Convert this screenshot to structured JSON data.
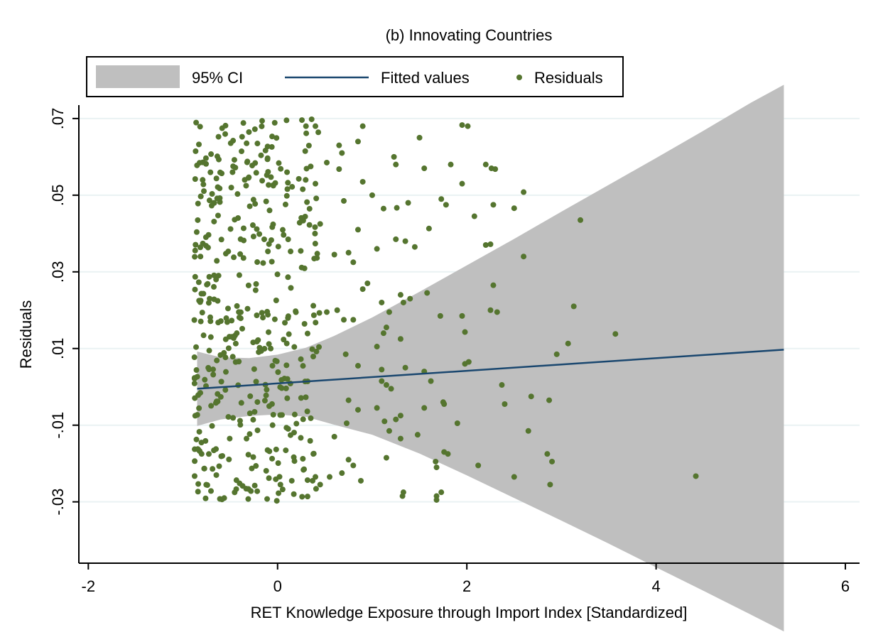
{
  "chart_data": {
    "type": "scatter",
    "title": "(b) Innovating Countries",
    "xlabel": "RET Knowledge Exposure through Import Index [Standardized]",
    "ylabel": "Residuals",
    "xlim": [
      -2.1,
      6.15
    ],
    "ylim": [
      -0.046,
      0.0735
    ],
    "xticks": [
      -2,
      0,
      2,
      4,
      6
    ],
    "xtick_labels": [
      "-2",
      "0",
      "2",
      "4",
      "6"
    ],
    "yticks": [
      -0.03,
      -0.01,
      0.01,
      0.03,
      0.05,
      0.07
    ],
    "ytick_labels": [
      "-.03",
      "-.01",
      ".01",
      ".03",
      ".05",
      ".07"
    ],
    "grid": true,
    "legend_position": "top",
    "legend": [
      "95% CI",
      "Fitted values",
      "Residuals"
    ],
    "colors": {
      "ci": "#bfbfbf",
      "fit": "#1a476f",
      "points": "#55752f",
      "grid": "#eaf2f3"
    },
    "fitted_line": {
      "x": [
        -0.85,
        5.35
      ],
      "y": [
        -0.0005,
        0.0097
      ]
    },
    "ci_band": {
      "x": [
        -0.85,
        -0.6,
        -0.3,
        0,
        0.3,
        0.6,
        1,
        1.5,
        2,
        2.5,
        3,
        3.5,
        4,
        4.5,
        5,
        5.35
      ],
      "upper": [
        0.0092,
        0.0077,
        0.0075,
        0.0084,
        0.0102,
        0.0133,
        0.0181,
        0.0248,
        0.0317,
        0.0386,
        0.0457,
        0.0527,
        0.0597,
        0.0668,
        0.0741,
        0.0788
      ],
      "lower": [
        -0.0102,
        -0.0085,
        -0.0076,
        -0.0072,
        -0.0078,
        -0.0099,
        -0.0125,
        -0.0174,
        -0.0231,
        -0.029,
        -0.0349,
        -0.0409,
        -0.0471,
        -0.0532,
        -0.0594,
        -0.0638
      ]
    },
    "series": [
      {
        "name": "Residuals",
        "points": [
          [
            0.3,
            0.068
          ],
          [
            0.36,
            0.0698
          ],
          [
            0.4,
            0.068
          ],
          [
            0.65,
            0.063
          ],
          [
            0.68,
            0.061
          ],
          [
            0.85,
            0.064
          ],
          [
            0.9,
            0.068
          ],
          [
            1.23,
            0.06
          ],
          [
            1.25,
            0.058
          ],
          [
            1.5,
            0.065
          ],
          [
            1.55,
            0.057
          ],
          [
            1.95,
            0.0683
          ],
          [
            2.01,
            0.068
          ],
          [
            2.2,
            0.058
          ],
          [
            2.26,
            0.057
          ],
          [
            2.3,
            0.0568
          ],
          [
            1.83,
            0.058
          ],
          [
            0.65,
            0.0568
          ],
          [
            0.52,
            0.0585
          ],
          [
            0.1,
            0.056
          ],
          [
            0.35,
            0.0575
          ],
          [
            0.4,
            0.053
          ],
          [
            0.9,
            0.0535
          ],
          [
            1,
            0.05
          ],
          [
            1.95,
            0.053
          ],
          [
            2.6,
            0.0508
          ],
          [
            2.5,
            0.0466
          ],
          [
            2.28,
            0.0475
          ],
          [
            1.73,
            0.049
          ],
          [
            1.78,
            0.0475
          ],
          [
            1.38,
            0.048
          ],
          [
            1.26,
            0.0467
          ],
          [
            1.12,
            0.0465
          ],
          [
            0.45,
            0.0425
          ],
          [
            0.7,
            0.0485
          ],
          [
            0.85,
            0.041
          ],
          [
            1.6,
            0.0413
          ],
          [
            2.08,
            0.0445
          ],
          [
            2.2,
            0.037
          ],
          [
            2.25,
            0.0372
          ],
          [
            2.6,
            0.034
          ],
          [
            3.2,
            0.0435
          ],
          [
            1.05,
            0.036
          ],
          [
            1.25,
            0.0385
          ],
          [
            1.35,
            0.038
          ],
          [
            1.45,
            0.0365
          ],
          [
            0.6,
            0.0345
          ],
          [
            0.75,
            0.035
          ],
          [
            0.8,
            0.0325
          ],
          [
            0.95,
            0.027
          ],
          [
            0.9,
            0.0255
          ],
          [
            1.1,
            0.022
          ],
          [
            1.18,
            0.0195
          ],
          [
            1.3,
            0.024
          ],
          [
            1.33,
            0.022
          ],
          [
            1.4,
            0.023
          ],
          [
            1.58,
            0.0245
          ],
          [
            1.72,
            0.0185
          ],
          [
            1.95,
            0.0185
          ],
          [
            2.25,
            0.02
          ],
          [
            2.32,
            0.0195
          ],
          [
            2.28,
            0.0265
          ],
          [
            0.52,
            0.0195
          ],
          [
            0.63,
            0.02
          ],
          [
            0.7,
            0.0175
          ],
          [
            0.8,
            0.0175
          ],
          [
            1.15,
            0.0155
          ],
          [
            1.12,
            0.014
          ],
          [
            1.05,
            0.0105
          ],
          [
            1.3,
            0.0125
          ],
          [
            1.98,
            0.0143
          ],
          [
            1.98,
            0.006
          ],
          [
            2.02,
            0.0065
          ],
          [
            2.95,
            0.0085
          ],
          [
            3.07,
            0.0113
          ],
          [
            3.13,
            0.021
          ],
          [
            3.57,
            0.0138
          ],
          [
            0.72,
            0.0085
          ],
          [
            0.85,
            0.0055
          ],
          [
            1.1,
            0.0045
          ],
          [
            1.35,
            0.005
          ],
          [
            1.55,
            0.004
          ],
          [
            1.62,
            0.0015
          ],
          [
            1.1,
            0.0015
          ],
          [
            1.15,
            0.0005
          ],
          [
            1.2,
            -0.0005
          ],
          [
            2.37,
            0.0005
          ],
          [
            2.4,
            -0.0045
          ],
          [
            2.68,
            -0.0025
          ],
          [
            2.87,
            -0.0035
          ],
          [
            1.75,
            -0.004
          ],
          [
            1.76,
            -0.0045
          ],
          [
            1.55,
            -0.0055
          ],
          [
            0.75,
            -0.0035
          ],
          [
            0.85,
            -0.006
          ],
          [
            1.05,
            -0.0055
          ],
          [
            1.3,
            -0.0075
          ],
          [
            1.25,
            -0.0085
          ],
          [
            1.13,
            -0.009
          ],
          [
            1.18,
            -0.0115
          ],
          [
            1.48,
            -0.0125
          ],
          [
            1.9,
            -0.0095
          ],
          [
            2.65,
            -0.0115
          ],
          [
            0.73,
            -0.0095
          ],
          [
            0.6,
            -0.013
          ],
          [
            0.75,
            -0.019
          ],
          [
            0.8,
            -0.0205
          ],
          [
            0.68,
            -0.0225
          ],
          [
            0.88,
            -0.0245
          ],
          [
            1.15,
            -0.0185
          ],
          [
            1.3,
            -0.0135
          ],
          [
            1.33,
            -0.0275
          ],
          [
            1.32,
            -0.0285
          ],
          [
            1.68,
            -0.0285
          ],
          [
            1.73,
            -0.0275
          ],
          [
            1.67,
            -0.0195
          ],
          [
            1.68,
            -0.021
          ],
          [
            1.76,
            -0.017
          ],
          [
            1.8,
            -0.0175
          ],
          [
            2.12,
            -0.0205
          ],
          [
            2.5,
            -0.0235
          ],
          [
            2.85,
            -0.0175
          ],
          [
            2.9,
            -0.0195
          ],
          [
            2.88,
            -0.0255
          ],
          [
            4.42,
            -0.0233
          ],
          [
            1.68,
            -0.0295
          ],
          [
            0.55,
            -0.0235
          ],
          [
            0.45,
            -0.0255
          ],
          [
            0.4,
            -0.0235
          ],
          [
            0.37,
            -0.0245
          ],
          [
            0.28,
            -0.0215
          ],
          [
            0.15,
            -0.0245
          ],
          [
            0.03,
            -0.0255
          ]
        ],
        "dense_cluster": {
          "x_range": [
            -0.88,
            0.45
          ],
          "y_range": [
            -0.0298,
            0.0698
          ],
          "count": 420
        }
      }
    ]
  }
}
